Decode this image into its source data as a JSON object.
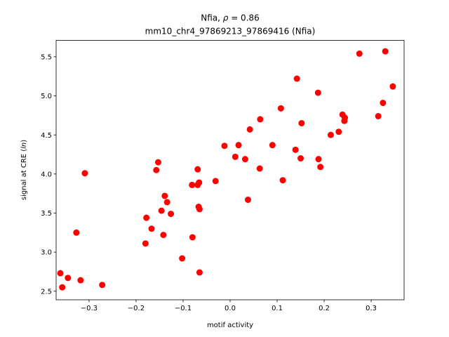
{
  "chart_data": {
    "type": "scatter",
    "title_line1_prefix": "Nfia, ",
    "title_line1_symbol": "ρ",
    "title_line1_value": " = 0.86",
    "title_line2": "mm10_chr4_97869213_97869416 (Nfia)",
    "xlabel": "motif activity",
    "ylabel_prefix": "signal at CRE (",
    "ylabel_italic": "ln",
    "ylabel_suffix": ")",
    "xlim": [
      -0.37,
      0.37
    ],
    "ylim": [
      2.39,
      5.71
    ],
    "xticks": [
      -0.3,
      -0.2,
      -0.1,
      0.0,
      0.1,
      0.2,
      0.3
    ],
    "xtick_labels": [
      "−0.3",
      "−0.2",
      "−0.1",
      "0.0",
      "0.1",
      "0.2",
      "0.3"
    ],
    "yticks": [
      2.5,
      3.0,
      3.5,
      4.0,
      4.5,
      5.0,
      5.5
    ],
    "ytick_labels": [
      "2.5",
      "3.0",
      "3.5",
      "4.0",
      "4.5",
      "5.0",
      "5.5"
    ],
    "marker_color": "#ff0000",
    "grid": false,
    "legend": "none",
    "points": [
      {
        "x": -0.361,
        "y": 2.73
      },
      {
        "x": -0.357,
        "y": 2.55
      },
      {
        "x": -0.345,
        "y": 2.67
      },
      {
        "x": -0.318,
        "y": 2.64
      },
      {
        "x": -0.272,
        "y": 2.58
      },
      {
        "x": -0.327,
        "y": 3.25
      },
      {
        "x": -0.309,
        "y": 4.01
      },
      {
        "x": -0.18,
        "y": 3.11
      },
      {
        "x": -0.178,
        "y": 3.44
      },
      {
        "x": -0.167,
        "y": 3.3
      },
      {
        "x": -0.157,
        "y": 4.05
      },
      {
        "x": -0.153,
        "y": 4.15
      },
      {
        "x": -0.146,
        "y": 3.53
      },
      {
        "x": -0.142,
        "y": 3.22
      },
      {
        "x": -0.139,
        "y": 3.72
      },
      {
        "x": -0.134,
        "y": 3.64
      },
      {
        "x": -0.126,
        "y": 3.49
      },
      {
        "x": -0.102,
        "y": 2.92
      },
      {
        "x": -0.08,
        "y": 3.19
      },
      {
        "x": -0.081,
        "y": 3.86
      },
      {
        "x": -0.069,
        "y": 3.86
      },
      {
        "x": -0.069,
        "y": 4.06
      },
      {
        "x": -0.067,
        "y": 3.58
      },
      {
        "x": -0.066,
        "y": 3.89
      },
      {
        "x": -0.065,
        "y": 3.55
      },
      {
        "x": -0.065,
        "y": 2.74
      },
      {
        "x": -0.031,
        "y": 3.91
      },
      {
        "x": -0.012,
        "y": 4.36
      },
      {
        "x": 0.011,
        "y": 4.22
      },
      {
        "x": 0.018,
        "y": 4.37
      },
      {
        "x": 0.032,
        "y": 4.19
      },
      {
        "x": 0.038,
        "y": 3.67
      },
      {
        "x": 0.042,
        "y": 4.57
      },
      {
        "x": 0.064,
        "y": 4.7
      },
      {
        "x": 0.063,
        "y": 4.07
      },
      {
        "x": 0.09,
        "y": 4.37
      },
      {
        "x": 0.108,
        "y": 4.84
      },
      {
        "x": 0.112,
        "y": 3.92
      },
      {
        "x": 0.139,
        "y": 4.31
      },
      {
        "x": 0.142,
        "y": 5.22
      },
      {
        "x": 0.15,
        "y": 4.2
      },
      {
        "x": 0.152,
        "y": 4.65
      },
      {
        "x": 0.187,
        "y": 5.04
      },
      {
        "x": 0.188,
        "y": 4.19
      },
      {
        "x": 0.192,
        "y": 4.09
      },
      {
        "x": 0.214,
        "y": 4.5
      },
      {
        "x": 0.231,
        "y": 4.54
      },
      {
        "x": 0.239,
        "y": 4.76
      },
      {
        "x": 0.243,
        "y": 4.68
      },
      {
        "x": 0.244,
        "y": 4.72
      },
      {
        "x": 0.275,
        "y": 5.54
      },
      {
        "x": 0.315,
        "y": 4.74
      },
      {
        "x": 0.325,
        "y": 4.91
      },
      {
        "x": 0.33,
        "y": 5.57
      },
      {
        "x": 0.346,
        "y": 5.12
      }
    ]
  }
}
